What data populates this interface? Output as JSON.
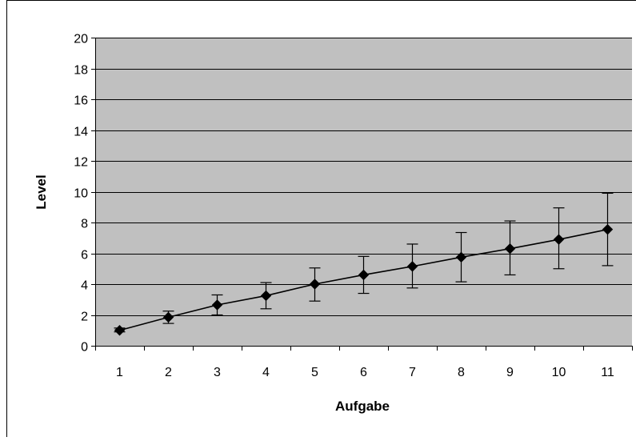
{
  "chart_data": {
    "type": "line",
    "title": "",
    "xlabel": "Aufgabe",
    "ylabel": "Level",
    "categories": [
      "1",
      "2",
      "3",
      "4",
      "5",
      "6",
      "7",
      "8",
      "9",
      "10",
      "11"
    ],
    "y_ticks": [
      "0",
      "2",
      "4",
      "6",
      "8",
      "10",
      "12",
      "14",
      "16",
      "18",
      "20"
    ],
    "ylim": [
      0,
      20
    ],
    "grid": "horizontal",
    "legend": "none",
    "marker": "diamond",
    "series": [
      {
        "values": [
          1.0,
          1.85,
          2.65,
          3.25,
          4.0,
          4.6,
          5.15,
          5.75,
          6.3,
          6.9,
          7.55
        ],
        "error_low": [
          0.9,
          1.45,
          2.0,
          2.4,
          2.9,
          3.4,
          3.75,
          4.15,
          4.6,
          5.0,
          5.2
        ],
        "error_high": [
          1.15,
          2.25,
          3.3,
          4.1,
          5.05,
          5.8,
          6.6,
          7.35,
          8.1,
          8.95,
          9.9
        ]
      }
    ],
    "colors": {
      "plot_background": "#c0c0c0",
      "gridline": "#000000",
      "line": "#000000",
      "marker": "#000000",
      "page_background": "#ffffff",
      "frame": "#000000"
    }
  }
}
